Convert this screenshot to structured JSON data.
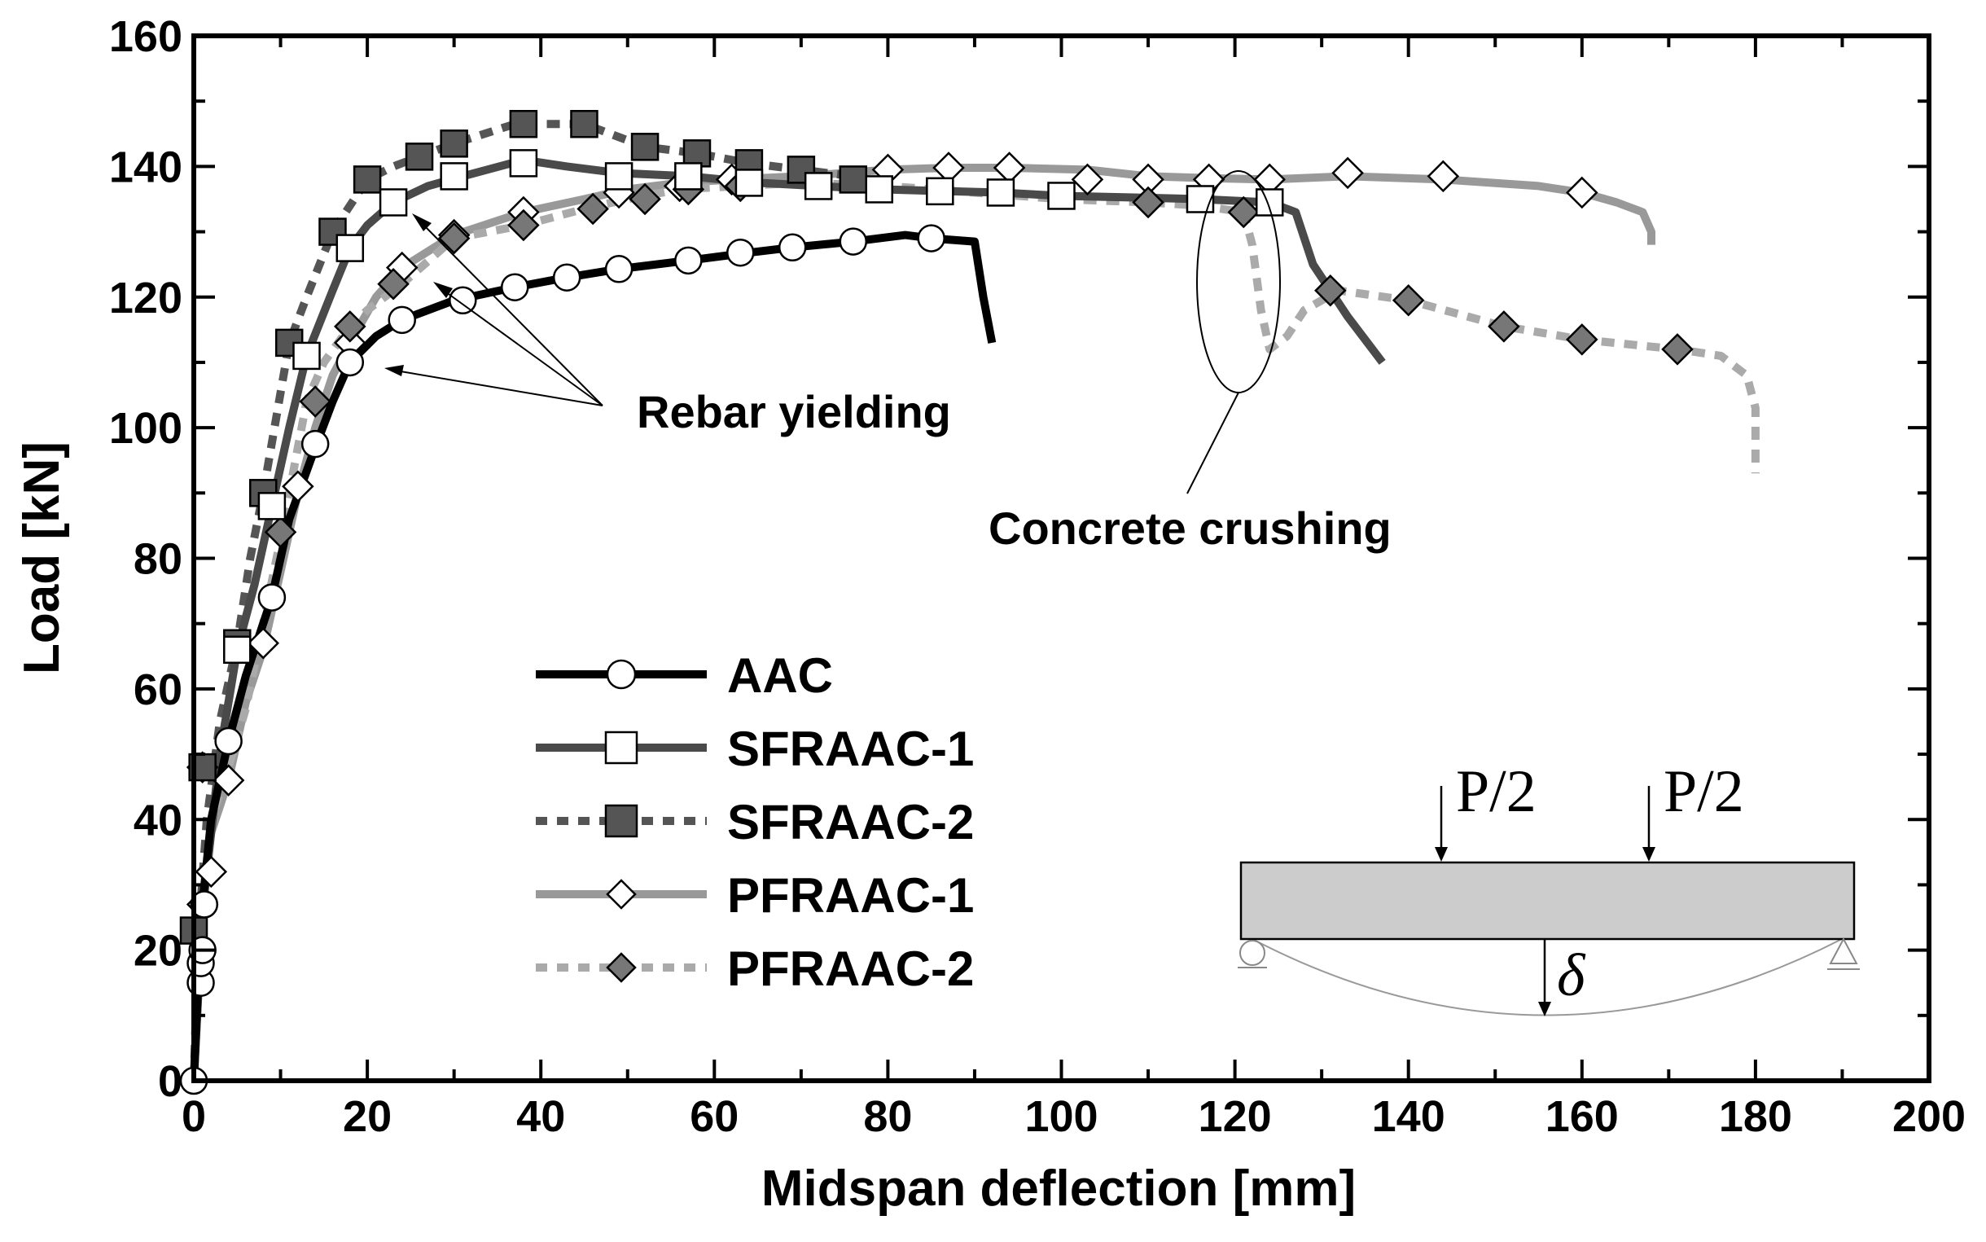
{
  "chart_data": {
    "type": "line",
    "title": "",
    "xlabel": "Midspan deflection [mm]",
    "ylabel": "Load [kN]",
    "xlim": [
      0,
      200
    ],
    "ylim": [
      0,
      160
    ],
    "x_ticks": [
      0,
      20,
      40,
      60,
      80,
      100,
      120,
      140,
      160,
      180,
      200
    ],
    "y_ticks": [
      0,
      20,
      40,
      60,
      80,
      100,
      120,
      140,
      160
    ],
    "x_tick_labels": [
      "0",
      "20",
      "40",
      "60",
      "80",
      "100",
      "120",
      "140",
      "160",
      "180",
      "200"
    ],
    "y_tick_labels": [
      "0",
      "20",
      "40",
      "60",
      "80",
      "100",
      "120",
      "140",
      "160"
    ],
    "grid": false,
    "legend_position": "lower-center",
    "series": [
      {
        "name": "AAC",
        "line_color": "#000000",
        "line_style": "solid",
        "marker": "circle",
        "marker_fill": "#ffffff",
        "curve": [
          [
            0,
            0
          ],
          [
            0.5,
            15
          ],
          [
            1,
            27
          ],
          [
            2,
            40
          ],
          [
            4,
            52
          ],
          [
            6,
            62
          ],
          [
            9,
            74
          ],
          [
            11,
            86
          ],
          [
            14,
            97
          ],
          [
            16,
            104
          ],
          [
            18,
            110
          ],
          [
            21,
            114
          ],
          [
            24,
            116.5
          ],
          [
            30,
            119.5
          ],
          [
            37,
            121.5
          ],
          [
            43,
            123
          ],
          [
            49,
            124.3
          ],
          [
            57,
            125.6
          ],
          [
            64,
            126.8
          ],
          [
            69,
            127.6
          ],
          [
            76,
            128.5
          ],
          [
            82,
            129.5
          ],
          [
            85,
            129
          ],
          [
            90,
            128.5
          ],
          [
            91,
            120
          ],
          [
            92,
            113
          ]
        ],
        "markers": [
          [
            0,
            0
          ],
          [
            0.8,
            15
          ],
          [
            0.8,
            18
          ],
          [
            1,
            20
          ],
          [
            1.2,
            27
          ],
          [
            4,
            52
          ],
          [
            9,
            74
          ],
          [
            14,
            97.5
          ],
          [
            18,
            110
          ],
          [
            24,
            116.5
          ],
          [
            31,
            119.5
          ],
          [
            37,
            121.5
          ],
          [
            43,
            123
          ],
          [
            49,
            124.3
          ],
          [
            57,
            125.6
          ],
          [
            63,
            126.8
          ],
          [
            69,
            127.6
          ],
          [
            76,
            128.5
          ],
          [
            85,
            129
          ]
        ]
      },
      {
        "name": "SFRAAC-1",
        "line_color": "#4a4a4a",
        "line_style": "solid",
        "marker": "square",
        "marker_fill": "#ffffff",
        "curve": [
          [
            0,
            0
          ],
          [
            1,
            26
          ],
          [
            2,
            38
          ],
          [
            3,
            50
          ],
          [
            5,
            66
          ],
          [
            7,
            76
          ],
          [
            9,
            88
          ],
          [
            11,
            100
          ],
          [
            13,
            111
          ],
          [
            16,
            121
          ],
          [
            18,
            127.5
          ],
          [
            20,
            131
          ],
          [
            23,
            134.5
          ],
          [
            27,
            137
          ],
          [
            31,
            138.5
          ],
          [
            38,
            141
          ],
          [
            43,
            140
          ],
          [
            49,
            139
          ],
          [
            57,
            138.5
          ],
          [
            65,
            137.5
          ],
          [
            72,
            137
          ],
          [
            79,
            136.5
          ],
          [
            87,
            136.2
          ],
          [
            93,
            136
          ],
          [
            100,
            135.5
          ],
          [
            110,
            135.2
          ],
          [
            116,
            135
          ],
          [
            124,
            134.5
          ],
          [
            127,
            133
          ],
          [
            129,
            125
          ],
          [
            133,
            117
          ],
          [
            137,
            110
          ]
        ],
        "markers": [
          [
            5,
            66
          ],
          [
            9,
            88
          ],
          [
            13,
            111
          ],
          [
            18,
            127.5
          ],
          [
            23,
            134.5
          ],
          [
            30,
            138.5
          ],
          [
            38,
            140.5
          ],
          [
            49,
            138.5
          ],
          [
            57,
            138.5
          ],
          [
            64,
            137.5
          ],
          [
            72,
            137
          ],
          [
            79,
            136.5
          ],
          [
            86,
            136.2
          ],
          [
            93,
            136
          ],
          [
            100,
            135.5
          ],
          [
            116,
            135
          ],
          [
            124,
            134.5
          ]
        ]
      },
      {
        "name": "SFRAAC-2",
        "line_color": "#555555",
        "line_style": "dashed",
        "marker": "square",
        "marker_fill": "#555555",
        "curve": [
          [
            0,
            0
          ],
          [
            0.5,
            22
          ],
          [
            1.5,
            40
          ],
          [
            3,
            55
          ],
          [
            5,
            67
          ],
          [
            6.5,
            80
          ],
          [
            8,
            90
          ],
          [
            11,
            113
          ],
          [
            13,
            120
          ],
          [
            16,
            130
          ],
          [
            20,
            138
          ],
          [
            23,
            140
          ],
          [
            26,
            141.5
          ],
          [
            30,
            143.5
          ],
          [
            37,
            146.5
          ],
          [
            45,
            146.5
          ],
          [
            52,
            143
          ],
          [
            58,
            142
          ],
          [
            64,
            140.5
          ],
          [
            70,
            139.5
          ],
          [
            76,
            138.5
          ],
          [
            79,
            136
          ]
        ],
        "markers": [
          [
            0,
            23
          ],
          [
            1,
            48
          ],
          [
            5,
            67
          ],
          [
            8,
            90
          ],
          [
            11,
            113
          ],
          [
            16,
            130
          ],
          [
            20,
            138
          ],
          [
            26,
            141.5
          ],
          [
            30,
            143.5
          ],
          [
            38,
            146.5
          ],
          [
            45,
            146.5
          ],
          [
            52,
            143
          ],
          [
            58,
            142
          ],
          [
            64,
            140.5
          ],
          [
            70,
            139.5
          ],
          [
            76,
            138
          ]
        ]
      },
      {
        "name": "PFRAAC-1",
        "line_color": "#999999",
        "line_style": "solid",
        "marker": "diamond",
        "marker_fill": "#ffffff",
        "curve": [
          [
            0,
            0
          ],
          [
            1,
            27
          ],
          [
            2,
            38
          ],
          [
            4,
            46
          ],
          [
            6,
            58
          ],
          [
            8,
            66
          ],
          [
            10,
            78
          ],
          [
            12,
            90
          ],
          [
            14,
            100
          ],
          [
            16,
            108
          ],
          [
            18,
            113
          ],
          [
            21,
            120
          ],
          [
            24,
            124.5
          ],
          [
            30,
            129.5
          ],
          [
            38,
            133
          ],
          [
            45,
            135
          ],
          [
            50,
            136.5
          ],
          [
            56,
            137.5
          ],
          [
            62,
            138
          ],
          [
            70,
            138.5
          ],
          [
            80,
            139.5
          ],
          [
            87,
            139.8
          ],
          [
            94,
            139.8
          ],
          [
            103,
            139.5
          ],
          [
            110,
            138.5
          ],
          [
            117,
            138.2
          ],
          [
            124,
            138
          ],
          [
            133,
            138.5
          ],
          [
            144,
            138
          ],
          [
            155,
            137
          ],
          [
            160,
            136
          ],
          [
            164,
            134.5
          ],
          [
            167,
            133
          ],
          [
            168,
            130
          ],
          [
            168,
            128
          ]
        ],
        "markers": [
          [
            1,
            27
          ],
          [
            2,
            32
          ],
          [
            4,
            46
          ],
          [
            8,
            67
          ],
          [
            12,
            91
          ],
          [
            18,
            113
          ],
          [
            24,
            124.5
          ],
          [
            30,
            129.5
          ],
          [
            38,
            133
          ],
          [
            49,
            136
          ],
          [
            56,
            137
          ],
          [
            62,
            138
          ],
          [
            80,
            139.5
          ],
          [
            87,
            139.8
          ],
          [
            94,
            139.8
          ],
          [
            103,
            138
          ],
          [
            110,
            138
          ],
          [
            117,
            138
          ],
          [
            124,
            138
          ],
          [
            133,
            139
          ],
          [
            144,
            138.5
          ],
          [
            160,
            136
          ]
        ]
      },
      {
        "name": "PFRAAC-2",
        "line_color": "#aaaaaa",
        "line_style": "dashed",
        "marker": "diamond",
        "marker_fill": "#777777",
        "curve": [
          [
            0,
            0
          ],
          [
            1,
            27
          ],
          [
            2,
            40
          ],
          [
            4,
            48
          ],
          [
            6,
            57
          ],
          [
            8,
            70
          ],
          [
            10,
            83
          ],
          [
            13,
            104
          ],
          [
            15,
            110
          ],
          [
            18,
            115.5
          ],
          [
            20,
            118
          ],
          [
            24,
            122
          ],
          [
            30,
            129
          ],
          [
            38,
            131
          ],
          [
            45,
            133.5
          ],
          [
            50,
            135
          ],
          [
            56,
            136.5
          ],
          [
            63,
            137
          ],
          [
            70,
            137.5
          ],
          [
            80,
            137
          ],
          [
            90,
            136
          ],
          [
            100,
            135
          ],
          [
            110,
            134.5
          ],
          [
            116,
            134
          ],
          [
            121,
            133
          ],
          [
            122,
            128
          ],
          [
            123,
            118
          ],
          [
            124,
            112
          ],
          [
            126,
            114
          ],
          [
            128,
            118
          ],
          [
            132,
            121
          ],
          [
            140,
            119.5
          ],
          [
            151,
            115.5
          ],
          [
            160,
            113.5
          ],
          [
            171,
            112
          ],
          [
            176,
            111
          ],
          [
            179,
            108
          ],
          [
            180,
            103
          ],
          [
            180,
            98
          ],
          [
            180,
            93
          ]
        ],
        "markers": [
          [
            1,
            48
          ],
          [
            10,
            84
          ],
          [
            14,
            104
          ],
          [
            18,
            115.5
          ],
          [
            23,
            122
          ],
          [
            30,
            129
          ],
          [
            38,
            131
          ],
          [
            46,
            133.5
          ],
          [
            52,
            135
          ],
          [
            57,
            136.5
          ],
          [
            63,
            137
          ],
          [
            110,
            134.5
          ],
          [
            121,
            133
          ],
          [
            131,
            121
          ],
          [
            140,
            119.5
          ],
          [
            151,
            115.5
          ],
          [
            160,
            113.5
          ],
          [
            171,
            112
          ]
        ]
      }
    ],
    "annotations": {
      "rebar_yielding": "Rebar yielding",
      "concrete_crushing": "Concrete crushing"
    },
    "inset": {
      "load_left": "P/2",
      "load_right": "P/2",
      "deflection_symbol": "δ"
    }
  }
}
